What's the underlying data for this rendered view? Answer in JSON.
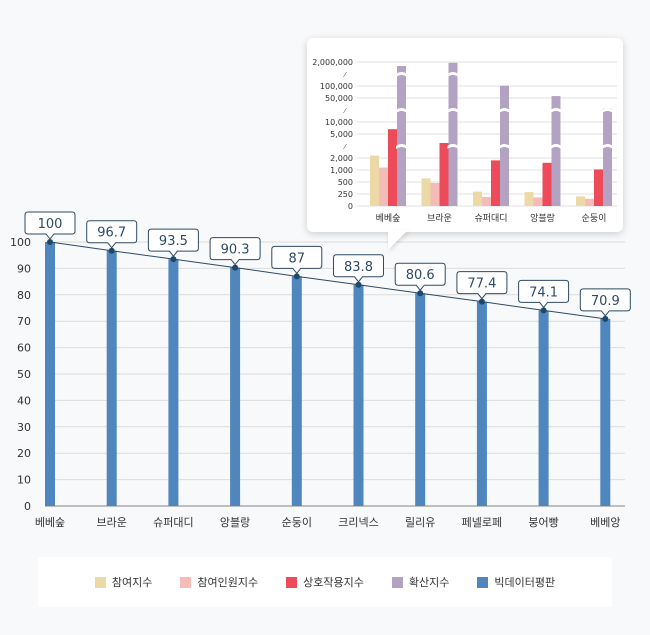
{
  "chart_data": [
    {
      "type": "bar",
      "categories": [
        "베베숲",
        "브라운",
        "슈퍼대디",
        "앙블랑",
        "순둥이",
        "크리넥스",
        "릴리유",
        "페넬로페",
        "붕어빵",
        "베베앙"
      ],
      "series": [
        {
          "name": "빅데이터평판",
          "values": [
            100,
            96.7,
            93.5,
            90.3,
            87,
            83.8,
            80.6,
            77.4,
            74.1,
            70.9
          ],
          "color": "#4f86bd"
        }
      ],
      "data_labels": [
        "100",
        "96.7",
        "93.5",
        "90.3",
        "87",
        "83.8",
        "80.6",
        "77.4",
        "74.1",
        "70.9"
      ],
      "overlay": "line connecting bar tops",
      "ylim": [
        0,
        100
      ],
      "yticks": [
        "0",
        "10",
        "20",
        "30",
        "40",
        "50",
        "60",
        "70",
        "80",
        "90",
        "100"
      ],
      "grid": true,
      "legend_placement": "bottom"
    },
    {
      "type": "bar",
      "categories": [
        "베베숲",
        "브라운",
        "슈퍼대디",
        "앙블랑",
        "순둥이"
      ],
      "series": [
        {
          "name": "참여지수",
          "values": [
            2200,
            650,
            300,
            290,
            200
          ],
          "color": "#ecd9a6"
        },
        {
          "name": "참여인원지수",
          "values": [
            1200,
            480,
            190,
            180,
            150
          ],
          "color": "#f5bcb7"
        },
        {
          "name": "상호작용지수",
          "values": [
            7000,
            3500,
            1800,
            1600,
            1050
          ],
          "color": "#ee4b5a"
        },
        {
          "name": "확산지수",
          "values": [
            1500000,
            1900000,
            110000,
            58000,
            28000
          ],
          "color": "#b3a2c2"
        }
      ],
      "yaxis": "broken",
      "yticks": [
        "0",
        "250",
        "500",
        "1,000",
        "2,000",
        "5,000",
        "10,000",
        "50,000",
        "100,000",
        "2,000,000"
      ],
      "grid": true
    }
  ],
  "legend": [
    {
      "label": "참여지수",
      "color": "#ecd9a6"
    },
    {
      "label": "참여인원지수",
      "color": "#f5bcb7"
    },
    {
      "label": "상호작용지수",
      "color": "#ee4b5a"
    },
    {
      "label": "확산지수",
      "color": "#b3a2c2"
    },
    {
      "label": "빅데이터평판",
      "color": "#4f86bd"
    }
  ]
}
